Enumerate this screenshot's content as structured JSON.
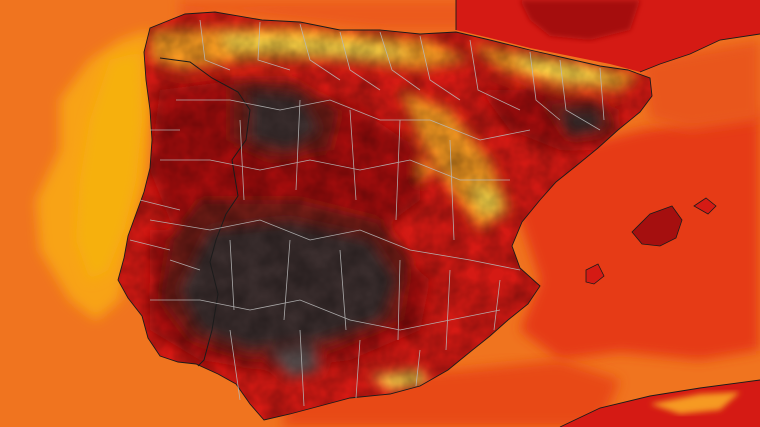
{
  "map": {
    "subject": "heat-map-iberian-peninsula",
    "labels": [],
    "colors": {
      "sea_orange": "#f0741f",
      "sea_red": "#e63a16",
      "atlantic_yellow": "#f8a312",
      "atlantic_deep": "#f6b011",
      "land_red": "#d51a14",
      "land_darkred": "#a50f0f",
      "land_maroon": "#6e1a14",
      "land_hottest": "#3b2f2f",
      "land_hotspot": "#5a5050",
      "mountain_yellow": "#f7d74a",
      "mountain_orange": "#f69a22",
      "border_line": "#b9b9b9",
      "coast_line": "#1b1b1b"
    }
  }
}
